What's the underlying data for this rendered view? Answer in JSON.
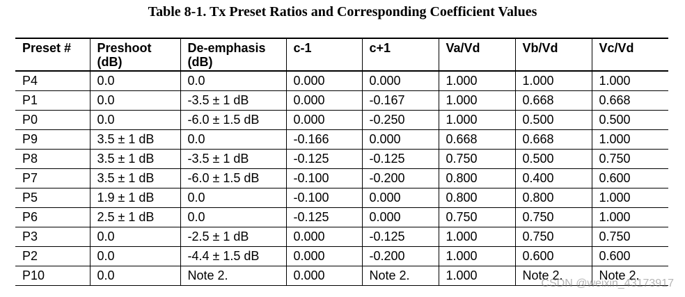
{
  "caption": "Table 8-1.  Tx Preset Ratios and Corresponding Coefficient Values",
  "table": {
    "headers": [
      "Preset #",
      "Preshoot\n(dB)",
      "De-emphasis\n(dB)",
      "c-1",
      "c+1",
      "Va/Vd",
      "Vb/Vd",
      "Vc/Vd"
    ],
    "rows": [
      [
        "P4",
        "0.0",
        "0.0",
        "0.000",
        "0.000",
        "1.000",
        "1.000",
        "1.000"
      ],
      [
        "P1",
        "0.0",
        "-3.5 ± 1 dB",
        "0.000",
        "-0.167",
        "1.000",
        "0.668",
        "0.668"
      ],
      [
        "P0",
        "0.0",
        "-6.0 ± 1.5 dB",
        "0.000",
        "-0.250",
        "1.000",
        "0.500",
        "0.500"
      ],
      [
        "P9",
        "3.5 ± 1 dB",
        "0.0",
        "-0.166",
        "0.000",
        "0.668",
        "0.668",
        "1.000"
      ],
      [
        "P8",
        "3.5 ± 1 dB",
        "-3.5 ± 1 dB",
        "-0.125",
        "-0.125",
        "0.750",
        "0.500",
        "0.750"
      ],
      [
        "P7",
        "3.5 ± 1 dB",
        "-6.0 ± 1.5 dB",
        "-0.100",
        "-0.200",
        "0.800",
        "0.400",
        "0.600"
      ],
      [
        "P5",
        "1.9 ± 1 dB",
        "0.0",
        "-0.100",
        "0.000",
        "0.800",
        "0.800",
        "1.000"
      ],
      [
        "P6",
        "2.5 ± 1 dB",
        "0.0",
        "-0.125",
        "0.000",
        "0.750",
        "0.750",
        "1.000"
      ],
      [
        "P3",
        "0.0",
        "-2.5 ± 1 dB",
        "0.000",
        "-0.125",
        "1.000",
        "0.750",
        "0.750"
      ],
      [
        "P2",
        "0.0",
        "-4.4 ± 1.5 dB",
        "0.000",
        "-0.200",
        "1.000",
        "0.600",
        "0.600"
      ],
      [
        "P10",
        "0.0",
        "Note 2.",
        "0.000",
        "Note 2.",
        "1.000",
        "Note 2.",
        "Note 2."
      ]
    ]
  },
  "watermark": "CSDN @weixin_43173917"
}
